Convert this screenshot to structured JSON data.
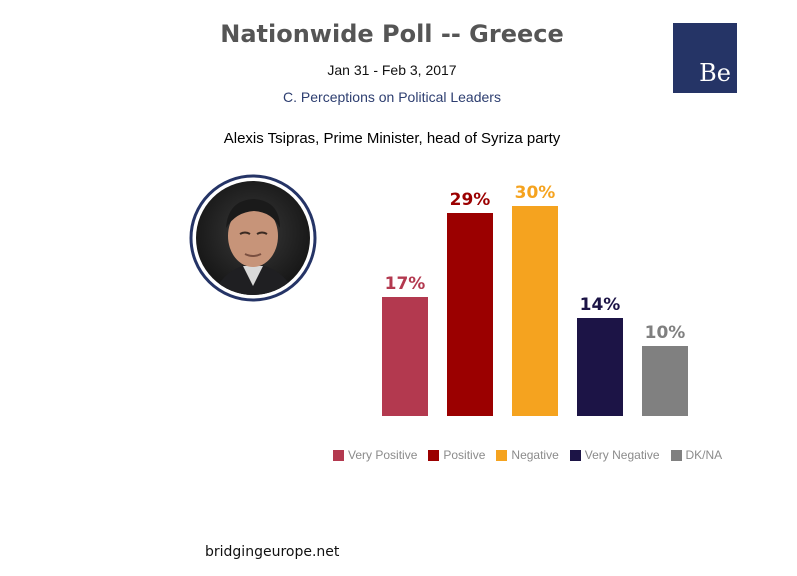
{
  "header": {
    "title": "Nationwide Poll -- Greece",
    "dates": "Jan 31 - Feb 3, 2017",
    "section": "C. Perceptions on Political Leaders",
    "subject": "Alexis Tsipras, Prime Minister, head of Syriza party"
  },
  "logo": {
    "text": "Be"
  },
  "footer": {
    "site": "bridgingeurope.net"
  },
  "chart_data": {
    "type": "bar",
    "categories": [
      "Very Positive",
      "Positive",
      "Negative",
      "Very Negative",
      "DK/NA"
    ],
    "values": [
      17,
      29,
      30,
      14,
      10
    ],
    "value_labels": [
      "17%",
      "29%",
      "30%",
      "14%",
      "10%"
    ],
    "colors": [
      "#b3394f",
      "#9b0000",
      "#f5a31f",
      "#1c1446",
      "#808080"
    ],
    "ylim": [
      0,
      30
    ],
    "grid": false,
    "legend": "bottom"
  }
}
